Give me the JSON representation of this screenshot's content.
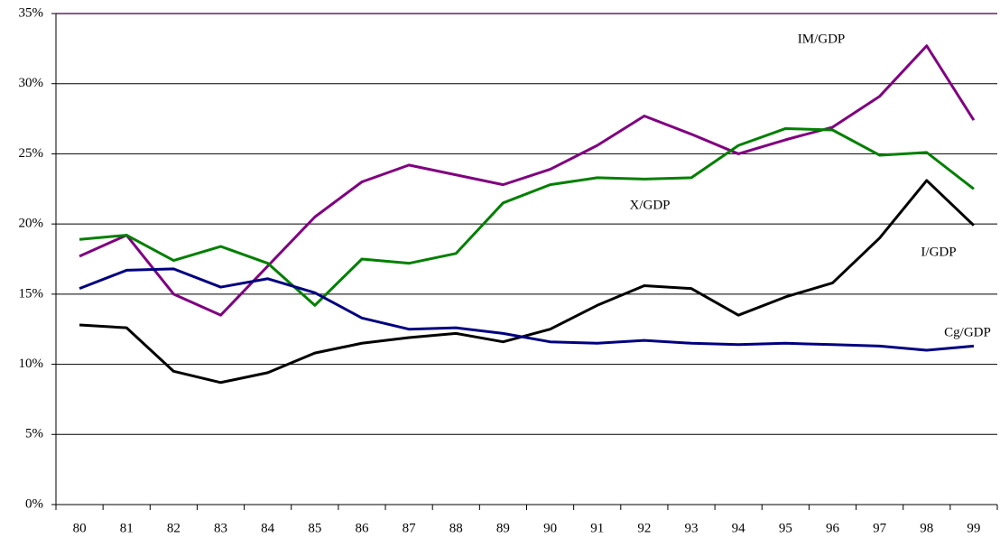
{
  "chart_data": {
    "type": "line",
    "categories": [
      "80",
      "81",
      "82",
      "83",
      "84",
      "85",
      "86",
      "87",
      "88",
      "89",
      "90",
      "91",
      "92",
      "93",
      "94",
      "95",
      "96",
      "97",
      "98",
      "99"
    ],
    "series": [
      {
        "name": "IM/GDP",
        "color": "#800080",
        "values": [
          17.7,
          19.2,
          15.0,
          13.5,
          17.0,
          20.5,
          23.0,
          24.2,
          23.5,
          22.8,
          23.9,
          25.6,
          27.7,
          26.4,
          25.0,
          26.0,
          26.9,
          29.1,
          32.7,
          27.4
        ]
      },
      {
        "name": "X/GDP",
        "color": "#008000",
        "values": [
          18.9,
          19.2,
          17.4,
          18.4,
          17.2,
          14.2,
          17.5,
          17.2,
          17.9,
          21.5,
          22.8,
          23.3,
          23.2,
          23.3,
          25.6,
          26.8,
          26.7,
          24.9,
          25.1,
          22.5
        ]
      },
      {
        "name": "I/GDP",
        "color": "#000000",
        "values": [
          12.8,
          12.6,
          9.5,
          8.7,
          9.4,
          10.8,
          11.5,
          11.9,
          12.2,
          11.6,
          12.5,
          14.2,
          15.6,
          15.4,
          13.5,
          14.8,
          15.8,
          19.0,
          23.1,
          19.9
        ]
      },
      {
        "name": "Cg/GDP",
        "color": "#000080",
        "values": [
          15.4,
          16.7,
          16.8,
          15.5,
          16.1,
          15.1,
          13.3,
          12.5,
          12.6,
          12.2,
          11.6,
          11.5,
          11.7,
          11.5,
          11.4,
          11.5,
          11.4,
          11.3,
          11.0,
          11.3
        ]
      }
    ],
    "ylim": [
      0,
      35
    ],
    "yticks": [
      {
        "value": 0,
        "label": "0%"
      },
      {
        "value": 5,
        "label": "5%"
      },
      {
        "value": 10,
        "label": "10%"
      },
      {
        "value": 15,
        "label": "15%"
      },
      {
        "value": 20,
        "label": "20%"
      },
      {
        "value": 25,
        "label": "25%"
      },
      {
        "value": 30,
        "label": "30%"
      },
      {
        "value": 35,
        "label": "35%"
      }
    ],
    "grid": true
  }
}
